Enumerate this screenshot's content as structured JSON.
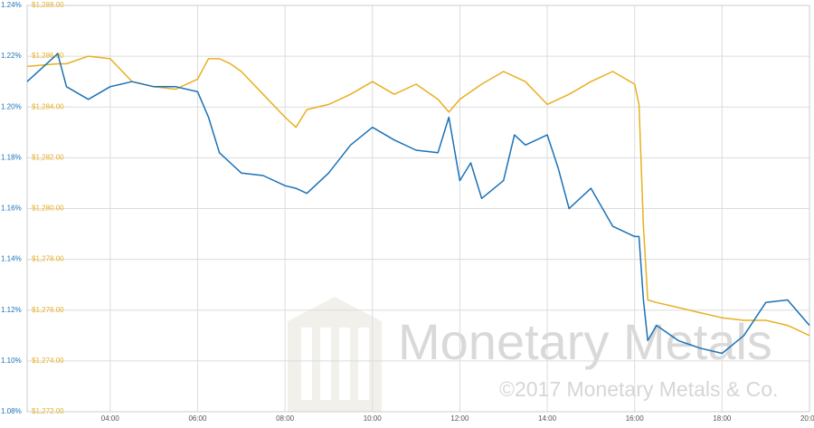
{
  "chart_data": {
    "type": "line",
    "x": [
      2.1,
      2.8,
      3,
      3.5,
      4,
      4.5,
      5,
      5.5,
      6,
      6.25,
      6.5,
      6.75,
      7,
      7.5,
      8,
      8.25,
      8.5,
      9,
      9.5,
      10,
      10.5,
      11,
      11.5,
      11.75,
      12,
      12.25,
      12.5,
      13,
      13.25,
      13.5,
      14,
      14.25,
      14.5,
      15,
      15.5,
      16,
      16.1,
      16.2,
      16.3,
      16.5,
      17,
      17.5,
      18,
      18.5,
      19,
      19.5,
      20
    ],
    "xlim": [
      2.1,
      20
    ],
    "xticks": [
      {
        "value": 4,
        "label": "04:00"
      },
      {
        "value": 6,
        "label": "06:00"
      },
      {
        "value": 8,
        "label": "08:00"
      },
      {
        "value": 10,
        "label": "10:00"
      },
      {
        "value": 12,
        "label": "12:00"
      },
      {
        "value": 14,
        "label": "14:00"
      },
      {
        "value": 16,
        "label": "16:00"
      },
      {
        "value": 18,
        "label": "18:00"
      },
      {
        "value": 20,
        "label": "20:00"
      }
    ],
    "ylim": [
      1.08,
      1.24
    ],
    "yticks": [
      {
        "value": 1.08,
        "label": "1.08%"
      },
      {
        "value": 1.1,
        "label": "1.10%"
      },
      {
        "value": 1.12,
        "label": "1.12%"
      },
      {
        "value": 1.14,
        "label": "1.14%"
      },
      {
        "value": 1.16,
        "label": "1.16%"
      },
      {
        "value": 1.18,
        "label": "1.18%"
      },
      {
        "value": 1.2,
        "label": "1.20%"
      },
      {
        "value": 1.22,
        "label": "1.22%"
      },
      {
        "value": 1.24,
        "label": "1.24%"
      }
    ],
    "y2lim": [
      1272,
      1288
    ],
    "y2ticks": [
      {
        "value": 1272,
        "label": "$1,272.00"
      },
      {
        "value": 1274,
        "label": "$1,274.00"
      },
      {
        "value": 1276,
        "label": "$1,276.00"
      },
      {
        "value": 1278,
        "label": "$1,278.00"
      },
      {
        "value": 1280,
        "label": "$1,280.00"
      },
      {
        "value": 1282,
        "label": "$1,282.00"
      },
      {
        "value": 1284,
        "label": "$1,284.00"
      },
      {
        "value": 1286,
        "label": "$1,286.00"
      },
      {
        "value": 1288,
        "label": "$1,288.00"
      }
    ],
    "grid": true,
    "series": [
      {
        "color": "#e8b021",
        "axis": "y2",
        "values": [
          1285.6,
          1285.7,
          1285.7,
          1286.0,
          1285.9,
          1285.0,
          1284.8,
          1284.7,
          1285.1,
          1285.9,
          1285.9,
          1285.7,
          1285.4,
          1284.5,
          1283.6,
          1283.2,
          1283.9,
          1284.1,
          1284.5,
          1285.0,
          1284.5,
          1284.9,
          1284.3,
          1283.8,
          1284.3,
          1284.6,
          1284.9,
          1285.4,
          1285.2,
          1285.0,
          1284.1,
          1284.3,
          1284.5,
          1285.0,
          1285.4,
          1284.9,
          1284.1,
          1279.3,
          1276.4,
          1276.3,
          1276.1,
          1275.9,
          1275.7,
          1275.6,
          1275.6,
          1275.4,
          1275.0
        ]
      },
      {
        "color": "#1a72b8",
        "axis": "y",
        "values": [
          1.21,
          1.221,
          1.208,
          1.203,
          1.208,
          1.21,
          1.208,
          1.208,
          1.206,
          1.196,
          1.182,
          1.178,
          1.174,
          1.173,
          1.169,
          1.168,
          1.166,
          1.174,
          1.185,
          1.192,
          1.187,
          1.183,
          1.182,
          1.196,
          1.171,
          1.178,
          1.164,
          1.171,
          1.189,
          1.185,
          1.189,
          1.176,
          1.16,
          1.168,
          1.153,
          1.149,
          1.149,
          1.124,
          1.108,
          1.114,
          1.108,
          1.105,
          1.103,
          1.11,
          1.123,
          1.124,
          1.114
        ]
      }
    ],
    "watermark": {
      "title": "Monetary Metals",
      "copyright": "©2017 Monetary Metals & Co."
    }
  }
}
